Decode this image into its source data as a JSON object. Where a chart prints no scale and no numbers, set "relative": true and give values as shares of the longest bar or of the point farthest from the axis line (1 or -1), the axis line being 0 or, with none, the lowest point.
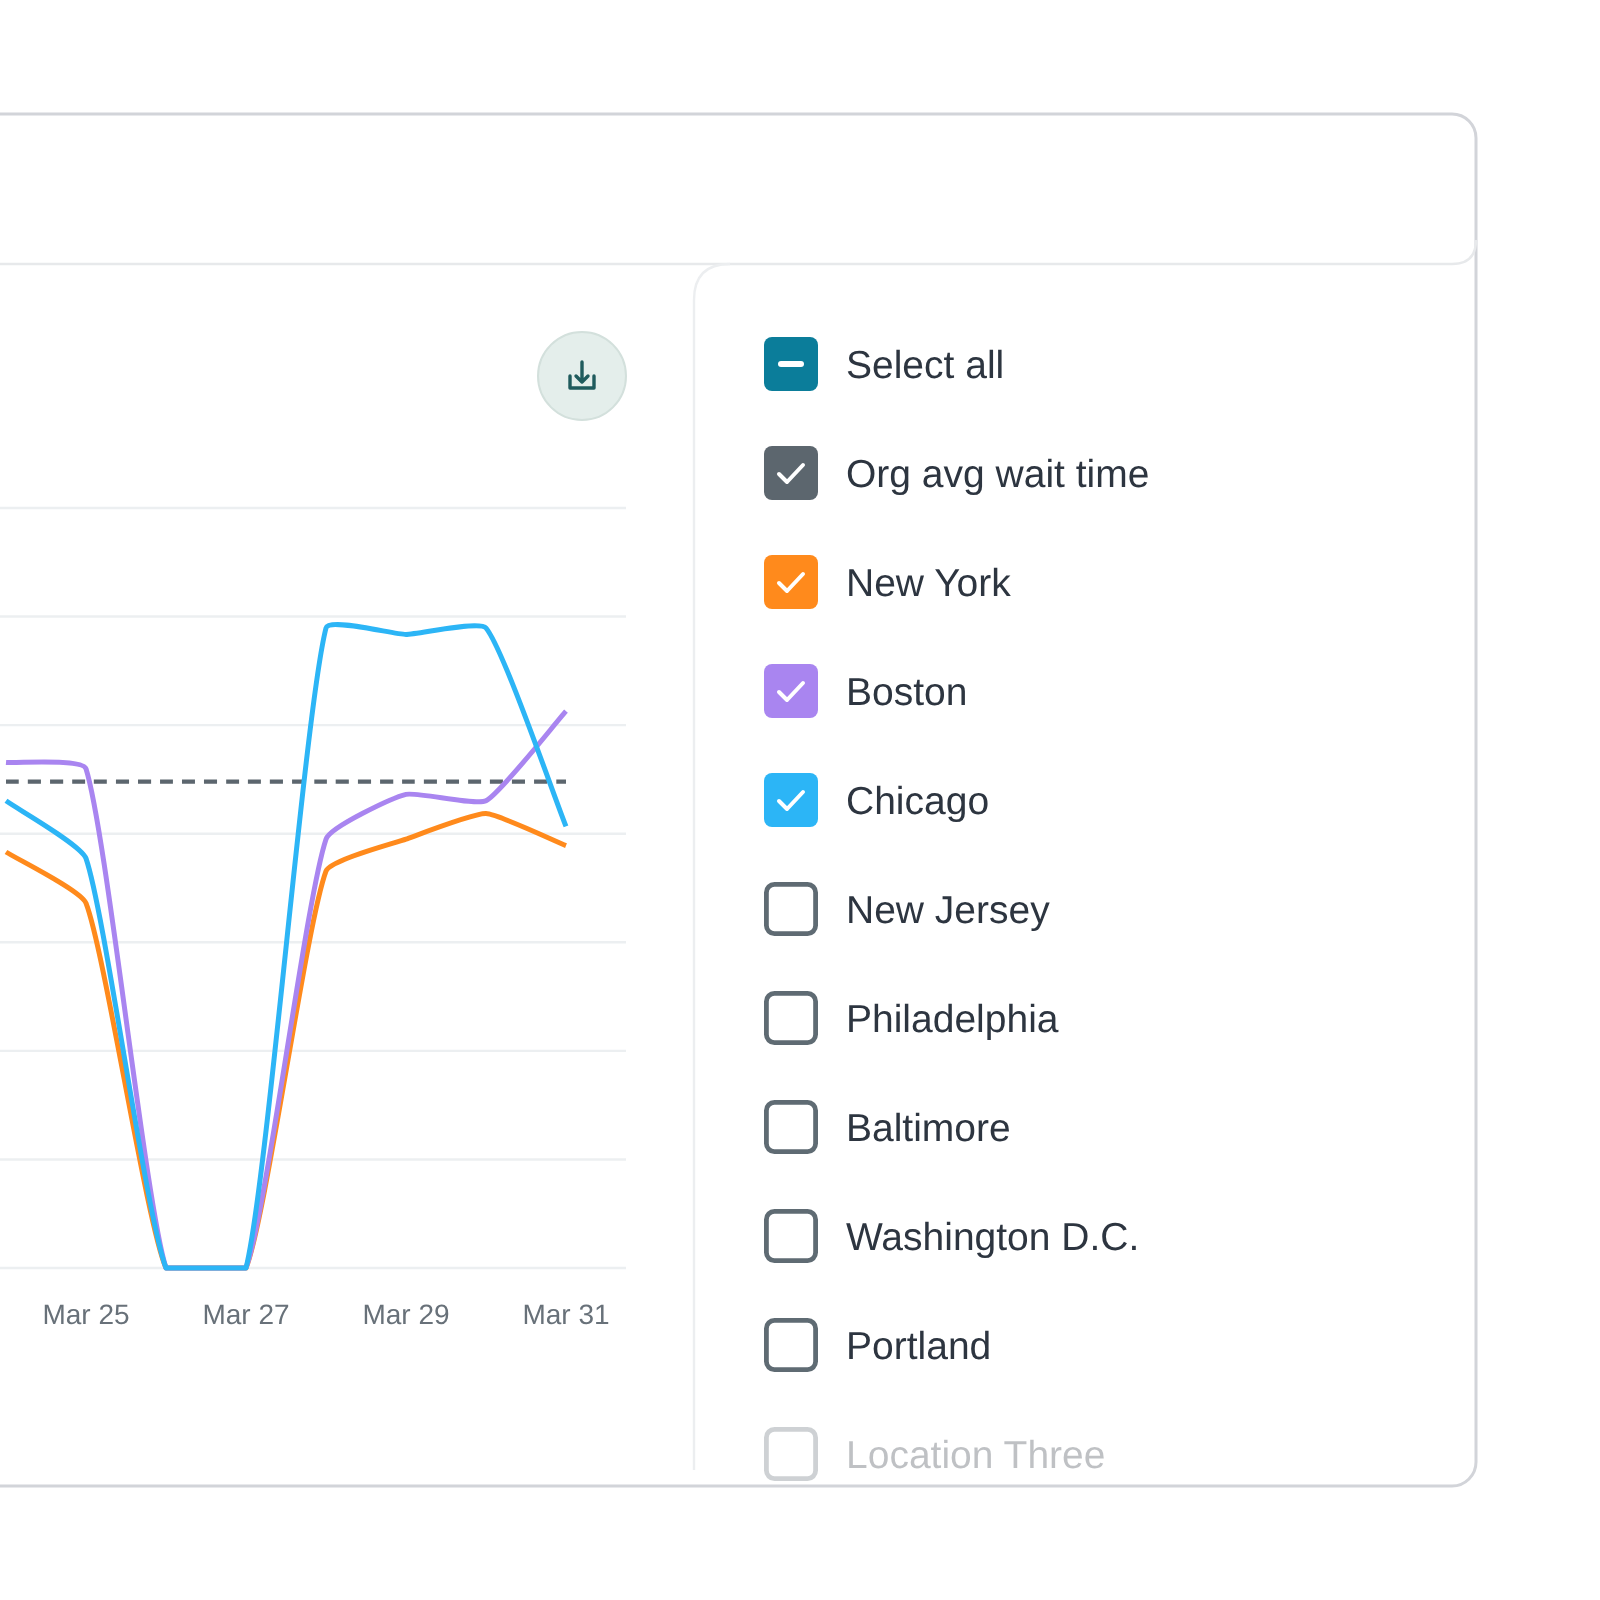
{
  "chart_data": {
    "type": "line",
    "x": [
      "--03-24",
      "--03-25",
      "--03-26",
      "--03-27",
      "--03-28",
      "--03-29",
      "--03-30",
      "--03-31"
    ],
    "xlim": [
      "--03-24",
      "--03-31T18:00"
    ],
    "xticks": [
      {
        "value": "--03-25",
        "label": "Mar 25"
      },
      {
        "value": "--03-27",
        "label": "Mar 27"
      },
      {
        "value": "--03-29",
        "label": "Mar 29"
      },
      {
        "value": "--03-31",
        "label": "Mar 31"
      }
    ],
    "relative": true,
    "grid": "y",
    "legend": "right",
    "series": [
      {
        "name": "Org avg wait time",
        "color": "#5c666e",
        "line_style": "dashed",
        "values": [
          0.76,
          0.76,
          0.76,
          0.76,
          0.76,
          0.76,
          0.76,
          0.76
        ]
      },
      {
        "name": "New York",
        "color": "#ff8a1c",
        "values": [
          0.65,
          0.57,
          0,
          0,
          0.62,
          0.67,
          0.71,
          0.66
        ]
      },
      {
        "name": "Boston",
        "color": "#a985f0",
        "values": [
          0.79,
          0.78,
          0,
          0,
          0.67,
          0.74,
          0.73,
          0.87
        ]
      },
      {
        "name": "Chicago",
        "color": "#2cb5f6",
        "values": [
          0.73,
          0.64,
          0,
          0,
          1,
          0.99,
          1,
          0.69
        ]
      }
    ],
    "annotations": [
      "Select all",
      "New Jersey",
      "Philadelphia",
      "Baltimore",
      "Washington D.C.",
      "Portland",
      "Location Three"
    ]
  }
}
